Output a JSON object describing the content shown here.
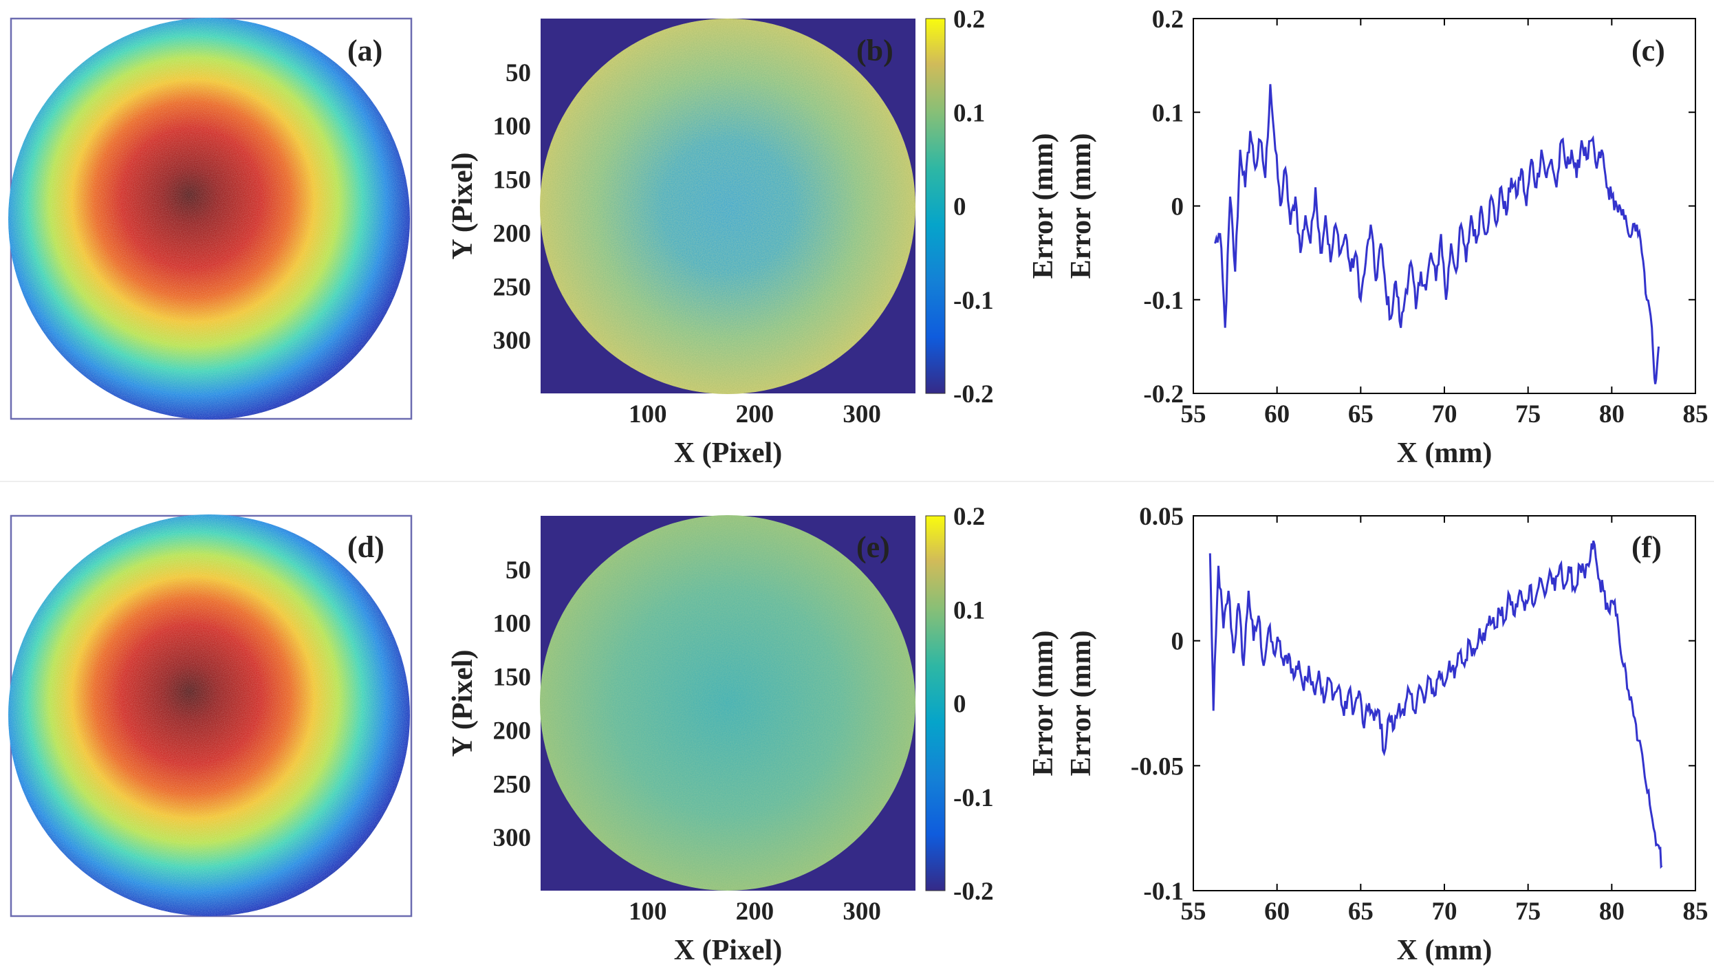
{
  "figure": {
    "rows": [
      {
        "surface_label": "(a)",
        "map_label": "(b)",
        "profile_label": "(c)"
      },
      {
        "surface_label": "(d)",
        "map_label": "(e)",
        "profile_label": "(f)"
      }
    ]
  },
  "chart_data": [
    {
      "panel": "(a)",
      "type": "heatmap",
      "title": "",
      "description_colormap": "jet",
      "shape": "circle"
    },
    {
      "panel": "(b)",
      "type": "heatmap",
      "xlabel": "X (Pixel)",
      "ylabel": "Y (Pixel)",
      "xticks": [
        "100",
        "200",
        "300"
      ],
      "yticks": [
        "50",
        "100",
        "150",
        "200",
        "250",
        "300"
      ],
      "xlim": [
        0,
        350
      ],
      "ylim": [
        0,
        350
      ],
      "colorbar": {
        "label": "Error (mm)",
        "ticks": [
          "0.2",
          "0.1",
          "0",
          "-0.1",
          "-0.2"
        ],
        "range": [
          -0.2,
          0.2
        ]
      }
    },
    {
      "panel": "(c)",
      "type": "line",
      "xlabel": "X (mm)",
      "ylabel": "Error (mm)",
      "xlim": [
        55,
        85
      ],
      "ylim": [
        -0.2,
        0.2
      ],
      "xticks": [
        "55",
        "60",
        "65",
        "70",
        "75",
        "80",
        "85"
      ],
      "yticks": [
        "0.2",
        "0.1",
        "0",
        "-0.1",
        "-0.2"
      ],
      "color": "#3333cc",
      "x_start": 56.3,
      "x_end": 82.8,
      "points": [
        [
          56.3,
          -0.04
        ],
        [
          56.6,
          -0.03
        ],
        [
          56.9,
          -0.13
        ],
        [
          57.2,
          0.01
        ],
        [
          57.5,
          -0.07
        ],
        [
          57.8,
          0.06
        ],
        [
          58.1,
          0.02
        ],
        [
          58.4,
          0.08
        ],
        [
          58.7,
          0.04
        ],
        [
          59.0,
          0.07
        ],
        [
          59.3,
          0.03
        ],
        [
          59.6,
          0.13
        ],
        [
          59.9,
          0.06
        ],
        [
          60.2,
          0.0
        ],
        [
          60.5,
          0.04
        ],
        [
          60.8,
          -0.02
        ],
        [
          61.1,
          0.01
        ],
        [
          61.4,
          -0.05
        ],
        [
          61.7,
          -0.01
        ],
        [
          62.0,
          -0.04
        ],
        [
          62.3,
          0.02
        ],
        [
          62.6,
          -0.05
        ],
        [
          62.9,
          -0.01
        ],
        [
          63.2,
          -0.06
        ],
        [
          63.5,
          -0.02
        ],
        [
          63.8,
          -0.05
        ],
        [
          64.1,
          -0.03
        ],
        [
          64.4,
          -0.07
        ],
        [
          64.7,
          -0.05
        ],
        [
          65.0,
          -0.1
        ],
        [
          65.3,
          -0.06
        ],
        [
          65.6,
          -0.02
        ],
        [
          65.9,
          -0.08
        ],
        [
          66.2,
          -0.04
        ],
        [
          66.5,
          -0.09
        ],
        [
          66.8,
          -0.12
        ],
        [
          67.1,
          -0.08
        ],
        [
          67.4,
          -0.13
        ],
        [
          67.7,
          -0.09
        ],
        [
          68.0,
          -0.06
        ],
        [
          68.3,
          -0.11
        ],
        [
          68.6,
          -0.07
        ],
        [
          68.9,
          -0.09
        ],
        [
          69.2,
          -0.05
        ],
        [
          69.5,
          -0.08
        ],
        [
          69.8,
          -0.03
        ],
        [
          70.1,
          -0.1
        ],
        [
          70.4,
          -0.04
        ],
        [
          70.7,
          -0.07
        ],
        [
          71.0,
          -0.02
        ],
        [
          71.3,
          -0.06
        ],
        [
          71.6,
          -0.01
        ],
        [
          71.9,
          -0.04
        ],
        [
          72.2,
          0.0
        ],
        [
          72.5,
          -0.03
        ],
        [
          72.8,
          0.01
        ],
        [
          73.1,
          -0.02
        ],
        [
          73.4,
          0.02
        ],
        [
          73.7,
          -0.01
        ],
        [
          74.0,
          0.03
        ],
        [
          74.3,
          0.01
        ],
        [
          74.6,
          0.04
        ],
        [
          74.9,
          0.0
        ],
        [
          75.2,
          0.05
        ],
        [
          75.5,
          0.02
        ],
        [
          75.8,
          0.06
        ],
        [
          76.1,
          0.03
        ],
        [
          76.4,
          0.05
        ],
        [
          76.7,
          0.02
        ],
        [
          77.0,
          0.07
        ],
        [
          77.3,
          0.04
        ],
        [
          77.6,
          0.06
        ],
        [
          77.9,
          0.03
        ],
        [
          78.2,
          0.07
        ],
        [
          78.5,
          0.05
        ],
        [
          78.8,
          0.07
        ],
        [
          79.1,
          0.04
        ],
        [
          79.4,
          0.06
        ],
        [
          79.7,
          0.02
        ],
        [
          80.0,
          0.01
        ],
        [
          80.3,
          0.0
        ],
        [
          80.6,
          -0.01
        ],
        [
          80.9,
          -0.02
        ],
        [
          81.2,
          -0.03
        ],
        [
          81.5,
          -0.02
        ],
        [
          81.8,
          -0.05
        ],
        [
          82.1,
          -0.1
        ],
        [
          82.4,
          -0.13
        ],
        [
          82.6,
          -0.19
        ],
        [
          82.8,
          -0.15
        ]
      ]
    },
    {
      "panel": "(d)",
      "type": "heatmap",
      "title": "",
      "description_colormap": "jet",
      "shape": "circle"
    },
    {
      "panel": "(e)",
      "type": "heatmap",
      "xlabel": "X (Pixel)",
      "ylabel": "Y (Pixel)",
      "xticks": [
        "100",
        "200",
        "300"
      ],
      "yticks": [
        "50",
        "100",
        "150",
        "200",
        "250",
        "300"
      ],
      "xlim": [
        0,
        350
      ],
      "ylim": [
        0,
        350
      ],
      "colorbar": {
        "label": "Error (mm)",
        "ticks": [
          "0.2",
          "0.1",
          "0",
          "-0.1",
          "-0.2"
        ],
        "range": [
          -0.2,
          0.2
        ]
      }
    },
    {
      "panel": "(f)",
      "type": "line",
      "xlabel": "X (mm)",
      "ylabel": "Error (mm)",
      "xlim": [
        55,
        85
      ],
      "ylim": [
        -0.1,
        0.05
      ],
      "xticks": [
        "55",
        "60",
        "65",
        "70",
        "75",
        "80",
        "85"
      ],
      "yticks": [
        "0.05",
        "0",
        "-0.05",
        "-0.1"
      ],
      "color": "#3333cc",
      "x_start": 56.0,
      "x_end": 83.0,
      "points": [
        [
          56.0,
          0.035
        ],
        [
          56.2,
          -0.028
        ],
        [
          56.5,
          0.03
        ],
        [
          56.8,
          0.005
        ],
        [
          57.1,
          0.02
        ],
        [
          57.4,
          -0.005
        ],
        [
          57.7,
          0.015
        ],
        [
          58.0,
          -0.01
        ],
        [
          58.3,
          0.02
        ],
        [
          58.6,
          0.0
        ],
        [
          58.9,
          0.01
        ],
        [
          59.2,
          -0.01
        ],
        [
          59.5,
          0.005
        ],
        [
          59.8,
          -0.005
        ],
        [
          60.1,
          0.0
        ],
        [
          60.4,
          -0.01
        ],
        [
          60.7,
          -0.005
        ],
        [
          61.0,
          -0.015
        ],
        [
          61.3,
          -0.008
        ],
        [
          61.6,
          -0.02
        ],
        [
          61.9,
          -0.01
        ],
        [
          62.2,
          -0.02
        ],
        [
          62.5,
          -0.012
        ],
        [
          62.8,
          -0.025
        ],
        [
          63.1,
          -0.015
        ],
        [
          63.4,
          -0.022
        ],
        [
          63.7,
          -0.018
        ],
        [
          64.0,
          -0.03
        ],
        [
          64.3,
          -0.02
        ],
        [
          64.6,
          -0.028
        ],
        [
          64.9,
          -0.02
        ],
        [
          65.2,
          -0.035
        ],
        [
          65.5,
          -0.025
        ],
        [
          65.8,
          -0.032
        ],
        [
          66.1,
          -0.028
        ],
        [
          66.4,
          -0.045
        ],
        [
          66.7,
          -0.03
        ],
        [
          67.0,
          -0.035
        ],
        [
          67.3,
          -0.025
        ],
        [
          67.6,
          -0.03
        ],
        [
          67.9,
          -0.02
        ],
        [
          68.2,
          -0.028
        ],
        [
          68.5,
          -0.018
        ],
        [
          68.8,
          -0.025
        ],
        [
          69.1,
          -0.015
        ],
        [
          69.4,
          -0.022
        ],
        [
          69.7,
          -0.012
        ],
        [
          70.0,
          -0.018
        ],
        [
          70.3,
          -0.008
        ],
        [
          70.6,
          -0.015
        ],
        [
          70.9,
          -0.005
        ],
        [
          71.2,
          -0.01
        ],
        [
          71.5,
          0.0
        ],
        [
          71.8,
          -0.005
        ],
        [
          72.1,
          0.005
        ],
        [
          72.4,
          0.0
        ],
        [
          72.7,
          0.01
        ],
        [
          73.0,
          0.005
        ],
        [
          73.3,
          0.012
        ],
        [
          73.6,
          0.008
        ],
        [
          73.9,
          0.018
        ],
        [
          74.2,
          0.01
        ],
        [
          74.5,
          0.02
        ],
        [
          74.8,
          0.012
        ],
        [
          75.1,
          0.022
        ],
        [
          75.4,
          0.015
        ],
        [
          75.7,
          0.025
        ],
        [
          76.0,
          0.018
        ],
        [
          76.3,
          0.028
        ],
        [
          76.6,
          0.02
        ],
        [
          76.9,
          0.03
        ],
        [
          77.2,
          0.022
        ],
        [
          77.5,
          0.028
        ],
        [
          77.8,
          0.02
        ],
        [
          78.1,
          0.03
        ],
        [
          78.4,
          0.025
        ],
        [
          78.7,
          0.032
        ],
        [
          78.9,
          0.04
        ],
        [
          79.2,
          0.025
        ],
        [
          79.5,
          0.02
        ],
        [
          79.8,
          0.012
        ],
        [
          80.1,
          0.015
        ],
        [
          80.4,
          0.005
        ],
        [
          80.7,
          -0.01
        ],
        [
          81.0,
          -0.02
        ],
        [
          81.3,
          -0.03
        ],
        [
          81.6,
          -0.04
        ],
        [
          81.9,
          -0.05
        ],
        [
          82.2,
          -0.06
        ],
        [
          82.5,
          -0.075
        ],
        [
          82.8,
          -0.082
        ],
        [
          83.0,
          -0.09
        ]
      ]
    }
  ]
}
